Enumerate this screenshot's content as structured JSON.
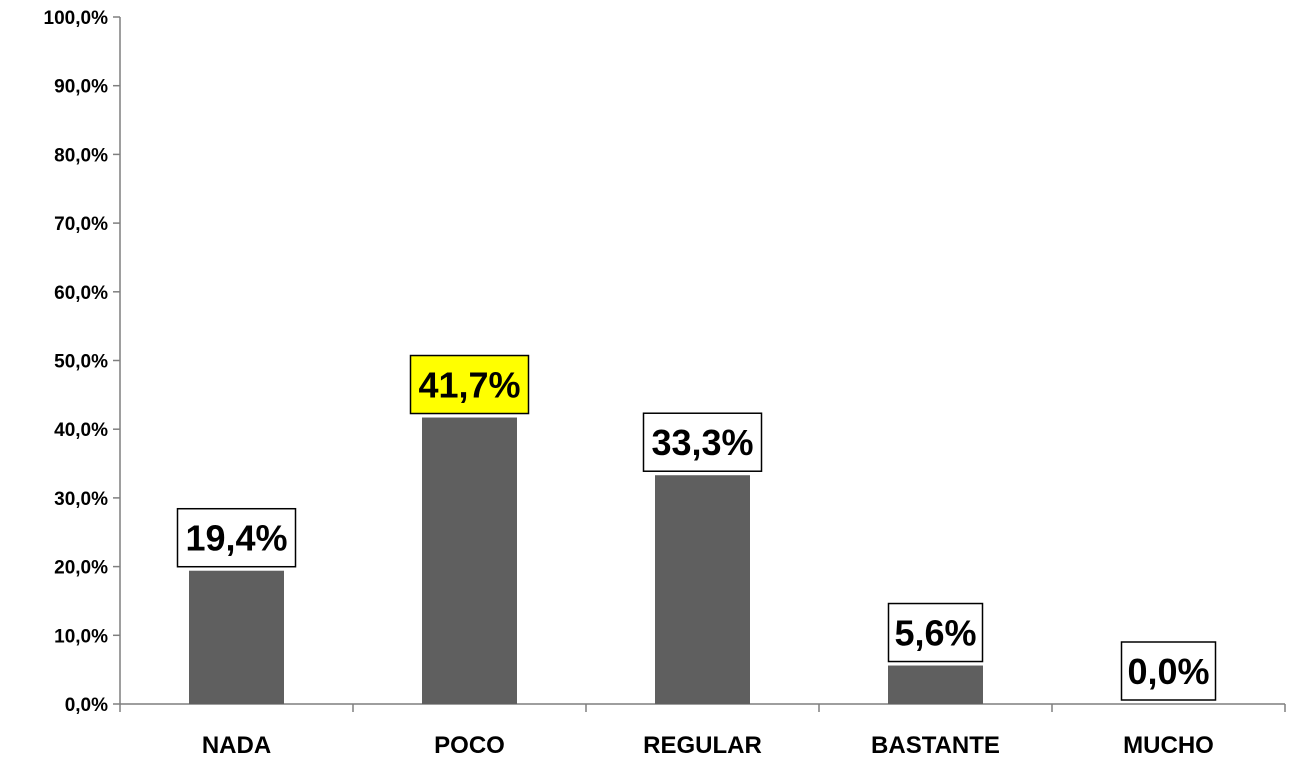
{
  "chart_data": {
    "type": "bar",
    "categories": [
      "NADA",
      "POCO",
      "REGULAR",
      "BASTANTE",
      "MUCHO"
    ],
    "values": [
      19.4,
      41.7,
      33.3,
      5.6,
      0.0
    ],
    "value_labels": [
      "19,4%",
      "41,7%",
      "33,3%",
      "5,6%",
      "0,0%"
    ],
    "highlight_index": 1,
    "y_ticks": [
      "0,0%",
      "10,0%",
      "20,0%",
      "30,0%",
      "40,0%",
      "50,0%",
      "60,0%",
      "70,0%",
      "80,0%",
      "90,0%",
      "100,0%"
    ],
    "ylim": [
      0,
      100
    ],
    "grid": false,
    "legend": "none",
    "colors": {
      "bar": "#5f5f5f",
      "axis": "#7f7f7f",
      "label_box": "#ffffff",
      "label_highlight": "#ffff00",
      "label_border": "#000000"
    }
  }
}
